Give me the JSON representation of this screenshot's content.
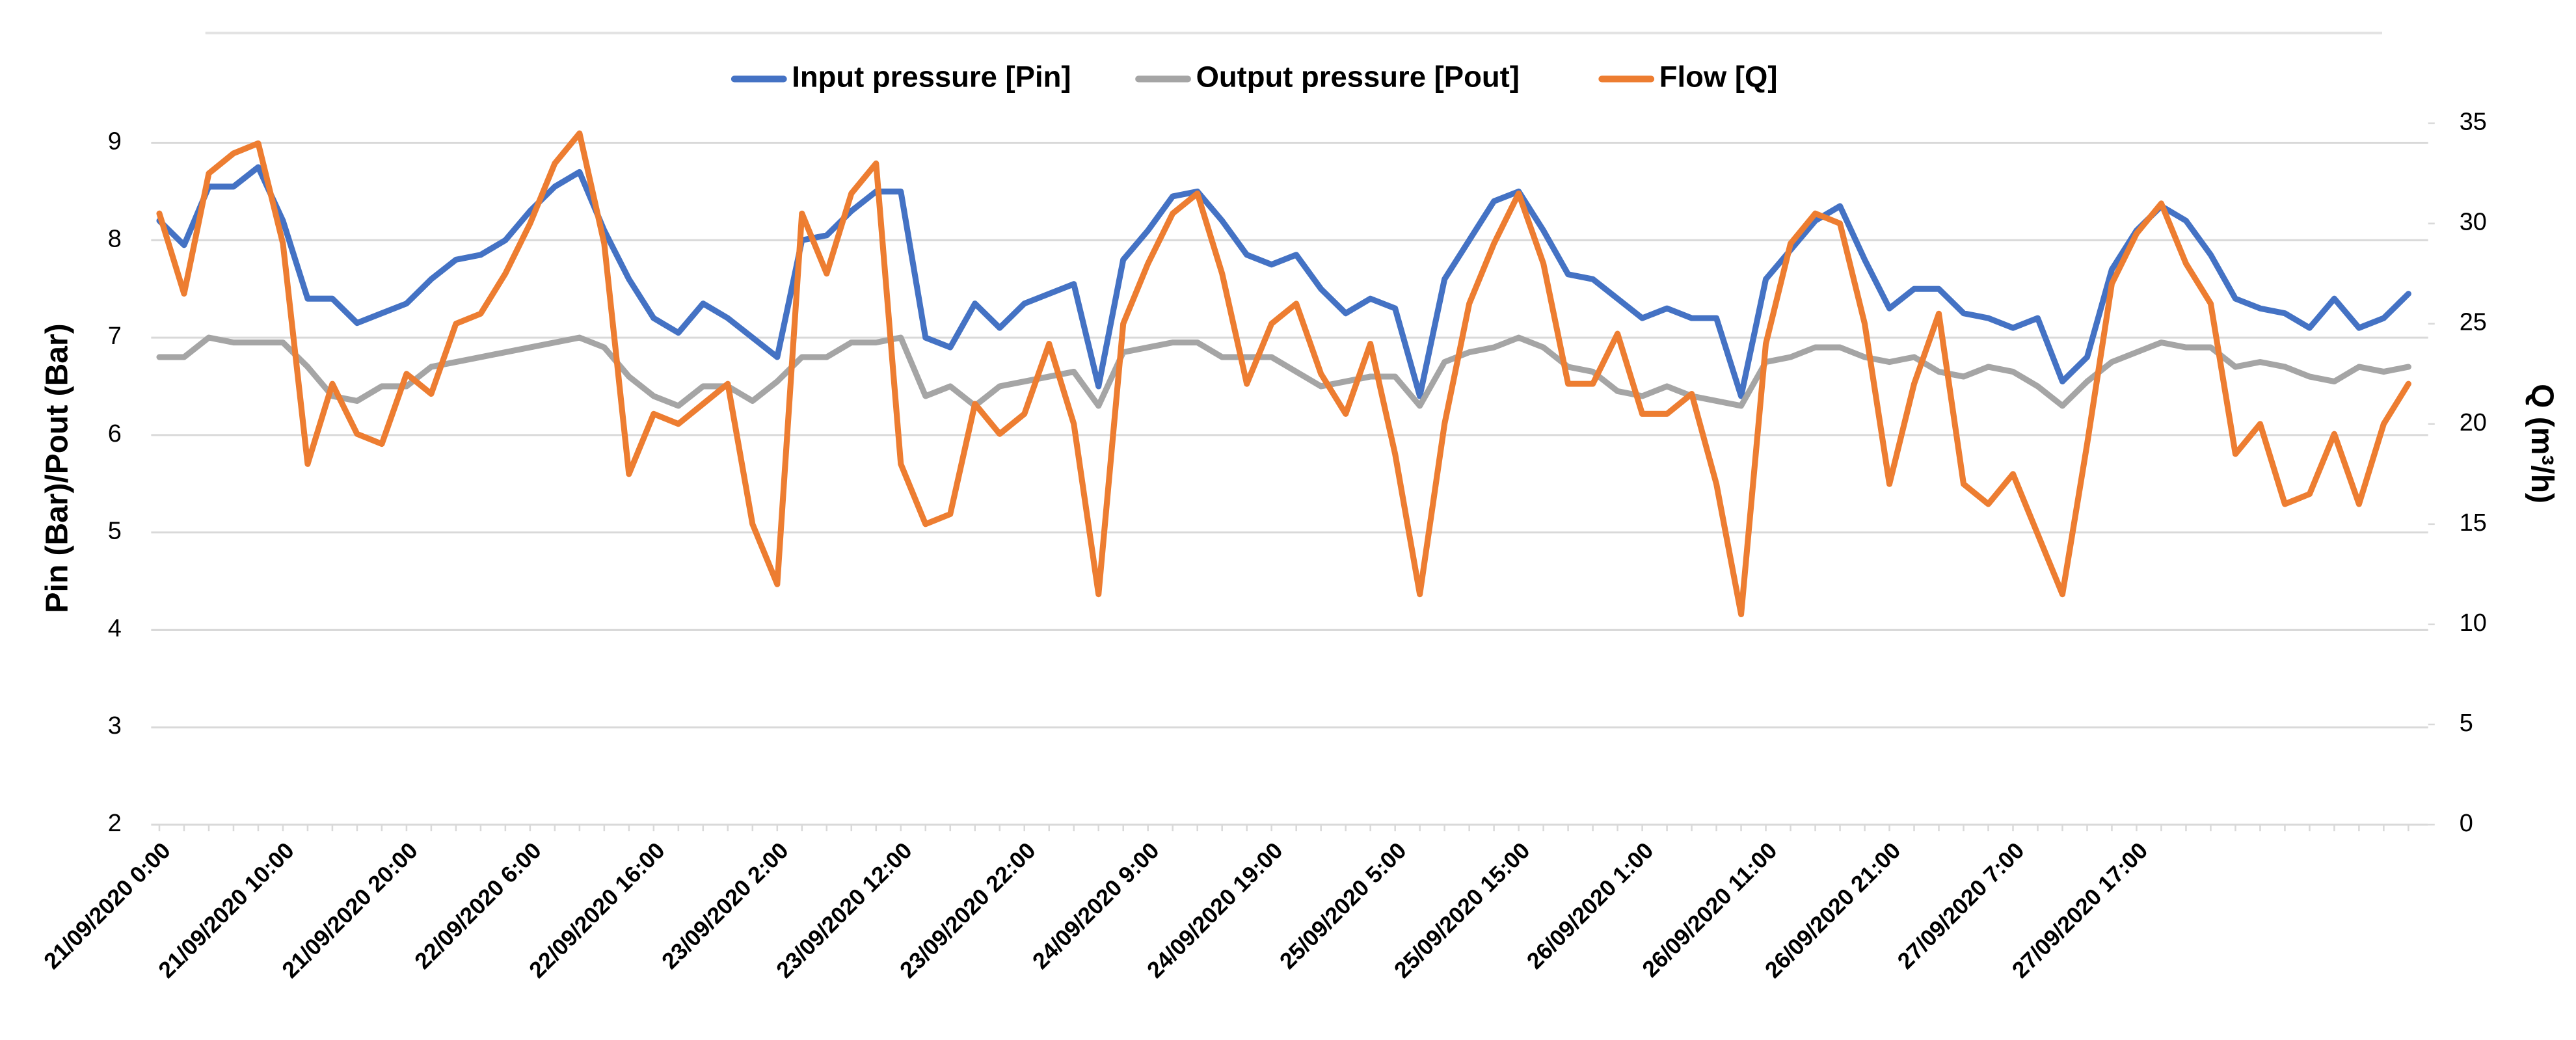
{
  "chart_data": {
    "type": "line",
    "categories": [
      "21/09/2020 0:00",
      null,
      null,
      null,
      null,
      "21/09/2020 10:00",
      null,
      null,
      null,
      null,
      "21/09/2020 20:00",
      null,
      null,
      null,
      null,
      "22/09/2020 6:00",
      null,
      null,
      null,
      null,
      "22/09/2020 16:00",
      null,
      null,
      null,
      null,
      "23/09/2020 2:00",
      null,
      null,
      null,
      null,
      "23/09/2020 12:00",
      null,
      null,
      null,
      null,
      "23/09/2020 22:00",
      null,
      null,
      null,
      null,
      "24/09/2020 9:00",
      null,
      null,
      null,
      null,
      "24/09/2020 19:00",
      null,
      null,
      null,
      null,
      "25/09/2020 5:00",
      null,
      null,
      null,
      null,
      "25/09/2020 15:00",
      null,
      null,
      null,
      null,
      "26/09/2020 1:00",
      null,
      null,
      null,
      null,
      "26/09/2020 11:00",
      null,
      null,
      null,
      null,
      "26/09/2020 21:00",
      null,
      null,
      null,
      null,
      "27/09/2020 7:00",
      null,
      null,
      null,
      null,
      "27/09/2020 17:00",
      null,
      null,
      null,
      null,
      null,
      null,
      null,
      null,
      null,
      null,
      null
    ],
    "series": [
      {
        "name": "Input pressure [Pin]",
        "color": "#4472c4",
        "values": [
          8.2,
          7.95,
          8.55,
          8.55,
          8.75,
          8.2,
          7.4,
          7.4,
          7.15,
          7.25,
          7.35,
          7.6,
          7.8,
          7.85,
          8.0,
          8.3,
          8.55,
          8.7,
          8.1,
          7.6,
          7.2,
          7.05,
          7.35,
          7.2,
          7.0,
          6.8,
          8.0,
          8.05,
          8.3,
          8.5,
          8.5,
          7.0,
          6.9,
          7.35,
          7.1,
          7.35,
          7.45,
          7.55,
          6.5,
          7.8,
          8.1,
          8.45,
          8.5,
          8.2,
          7.85,
          7.75,
          7.85,
          7.5,
          7.25,
          7.4,
          7.3,
          6.4,
          7.6,
          8.0,
          8.4,
          8.5,
          8.1,
          7.65,
          7.6,
          7.4,
          7.2,
          7.3,
          7.2,
          7.2,
          6.4,
          7.6,
          7.9,
          8.2,
          8.35,
          7.8,
          7.3,
          7.5,
          7.5,
          7.25,
          7.2,
          7.1,
          7.2,
          6.55,
          6.8,
          7.7,
          8.1,
          8.35,
          8.2,
          7.85,
          7.4,
          7.3,
          7.25,
          7.1,
          7.4,
          7.1,
          7.2,
          7.45
        ]
      },
      {
        "name": "Output pressure [Pout]",
        "color": "#a5a5a5",
        "values": [
          6.8,
          6.8,
          7.0,
          6.95,
          6.95,
          6.95,
          6.7,
          6.4,
          6.35,
          6.5,
          6.5,
          6.7,
          6.75,
          6.8,
          6.85,
          6.9,
          6.95,
          7.0,
          6.9,
          6.6,
          6.4,
          6.3,
          6.5,
          6.5,
          6.35,
          6.55,
          6.8,
          6.8,
          6.95,
          6.95,
          7.0,
          6.4,
          6.5,
          6.3,
          6.5,
          6.55,
          6.6,
          6.65,
          6.3,
          6.85,
          6.9,
          6.95,
          6.95,
          6.8,
          6.8,
          6.8,
          6.65,
          6.5,
          6.55,
          6.6,
          6.6,
          6.3,
          6.75,
          6.85,
          6.9,
          7.0,
          6.9,
          6.7,
          6.65,
          6.45,
          6.4,
          6.5,
          6.4,
          6.35,
          6.3,
          6.75,
          6.8,
          6.9,
          6.9,
          6.8,
          6.75,
          6.8,
          6.65,
          6.6,
          6.7,
          6.65,
          6.5,
          6.3,
          6.55,
          6.75,
          6.85,
          6.95,
          6.9,
          6.9,
          6.7,
          6.75,
          6.7,
          6.6,
          6.55,
          6.7,
          6.65,
          6.7
        ]
      },
      {
        "name": "Flow [Q]",
        "color": "#ed7d31",
        "axis": "y2",
        "values": [
          30.5,
          26.5,
          32.5,
          33.5,
          34,
          29,
          18,
          22,
          19.5,
          19,
          22.5,
          21.5,
          25,
          25.5,
          27.5,
          30,
          33,
          34.5,
          29,
          17.5,
          20.5,
          20,
          21,
          22,
          15,
          12,
          30.5,
          27.5,
          31.5,
          33,
          18,
          15,
          15.5,
          21,
          19.5,
          20.5,
          24,
          20,
          11.5,
          25,
          28,
          30.5,
          31.5,
          27.5,
          22,
          25,
          26,
          22.5,
          20.5,
          24,
          18.5,
          11.5,
          20,
          26,
          29,
          31.5,
          28,
          22,
          22,
          24.5,
          20.5,
          20.5,
          21.5,
          17,
          10.5,
          24,
          29,
          30.5,
          30,
          25,
          17,
          22,
          25.5,
          17,
          16,
          17.5,
          14.5,
          11.5,
          19,
          27,
          29.5,
          31,
          28,
          26,
          18.5,
          20,
          16,
          16.5,
          19.5,
          16,
          20,
          22
        ]
      }
    ],
    "y_label": "Pin (Bar)/Pout (Bar)",
    "y2_label": "Q (m³/h)",
    "ylim": [
      2,
      9.2
    ],
    "yticks": [
      2,
      3,
      4,
      5,
      6,
      7,
      8,
      9
    ],
    "y2lim": [
      0,
      35
    ],
    "y2ticks": [
      0,
      5,
      10,
      15,
      20,
      25,
      30,
      35
    ],
    "grid": true,
    "legend": "top"
  }
}
